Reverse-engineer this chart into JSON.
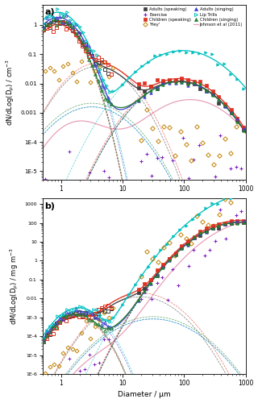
{
  "xlabel": "Diameter / μm",
  "ylabel_a": "dN/dLog(Dₙ) / cm⁻³",
  "ylabel_b": "dM/dLog(Dₙ) / mg m⁻³",
  "xlim": [
    0.5,
    1000
  ],
  "ylim_a": [
    5e-06,
    5
  ],
  "ylim_b": [
    1e-06,
    2000
  ],
  "colors": {
    "adults_speaking": "#404040",
    "children_speaking": "#e03020",
    "adults_singing": "#4040d0",
    "children_singing": "#208030",
    "exercise": "#8020c0",
    "hey": "#c08000",
    "lip_trills": "#00c0c0",
    "johnson": "#e8a0b8"
  },
  "johnson_color": "#e8a0b8",
  "background_color": "#ffffff",
  "series_params": {
    "Adults (speaking)": {
      "color": "#404040",
      "marker": "s",
      "modes": [
        {
          "N": 0.7,
          "mu": -0.05,
          "sigma": 0.21
        },
        {
          "N": 0.03,
          "mu": 0.58,
          "sigma": 0.32
        },
        {
          "N": 0.0115,
          "mu": 1.92,
          "sigma": 0.38
        }
      ]
    },
    "Children (speaking)": {
      "color": "#e03020",
      "marker": "s",
      "modes": [
        {
          "N": 0.55,
          "mu": -0.05,
          "sigma": 0.21
        },
        {
          "N": 0.04,
          "mu": 0.6,
          "sigma": 0.32
        },
        {
          "N": 0.014,
          "mu": 1.92,
          "sigma": 0.38
        }
      ]
    },
    "Adults (singing)": {
      "color": "#4040d0",
      "marker": "^",
      "modes": [
        {
          "N": 1.0,
          "mu": -0.05,
          "sigma": 0.22
        },
        {
          "N": 0.0015,
          "mu": 0.5,
          "sigma": 0.38
        },
        {
          "N": 0.011,
          "mu": 1.92,
          "sigma": 0.38
        }
      ]
    },
    "Children (singing)": {
      "color": "#208030",
      "marker": "^",
      "modes": [
        {
          "N": 0.75,
          "mu": -0.06,
          "sigma": 0.21
        },
        {
          "N": 0.002,
          "mu": 0.5,
          "sigma": 0.38
        },
        {
          "N": 0.011,
          "mu": 1.92,
          "sigma": 0.38
        }
      ]
    },
    "Lip Trills": {
      "color": "#00c0c0",
      "marker": ">",
      "modes": [
        {
          "N": 1.5,
          "mu": -0.05,
          "sigma": 0.22
        },
        {
          "N": 0.0015,
          "mu": 0.5,
          "sigma": 0.38
        },
        {
          "N": 0.14,
          "mu": 1.98,
          "sigma": 0.42
        }
      ]
    }
  },
  "johnson_modes": [
    {
      "N": 0.0003,
      "mu": 0.28,
      "sigma": 0.28
    },
    {
      "N": 0.00025,
      "mu": 0.9,
      "sigma": 0.48
    },
    {
      "N": 0.0028,
      "mu": 2.1,
      "sigma": 0.4
    }
  ]
}
